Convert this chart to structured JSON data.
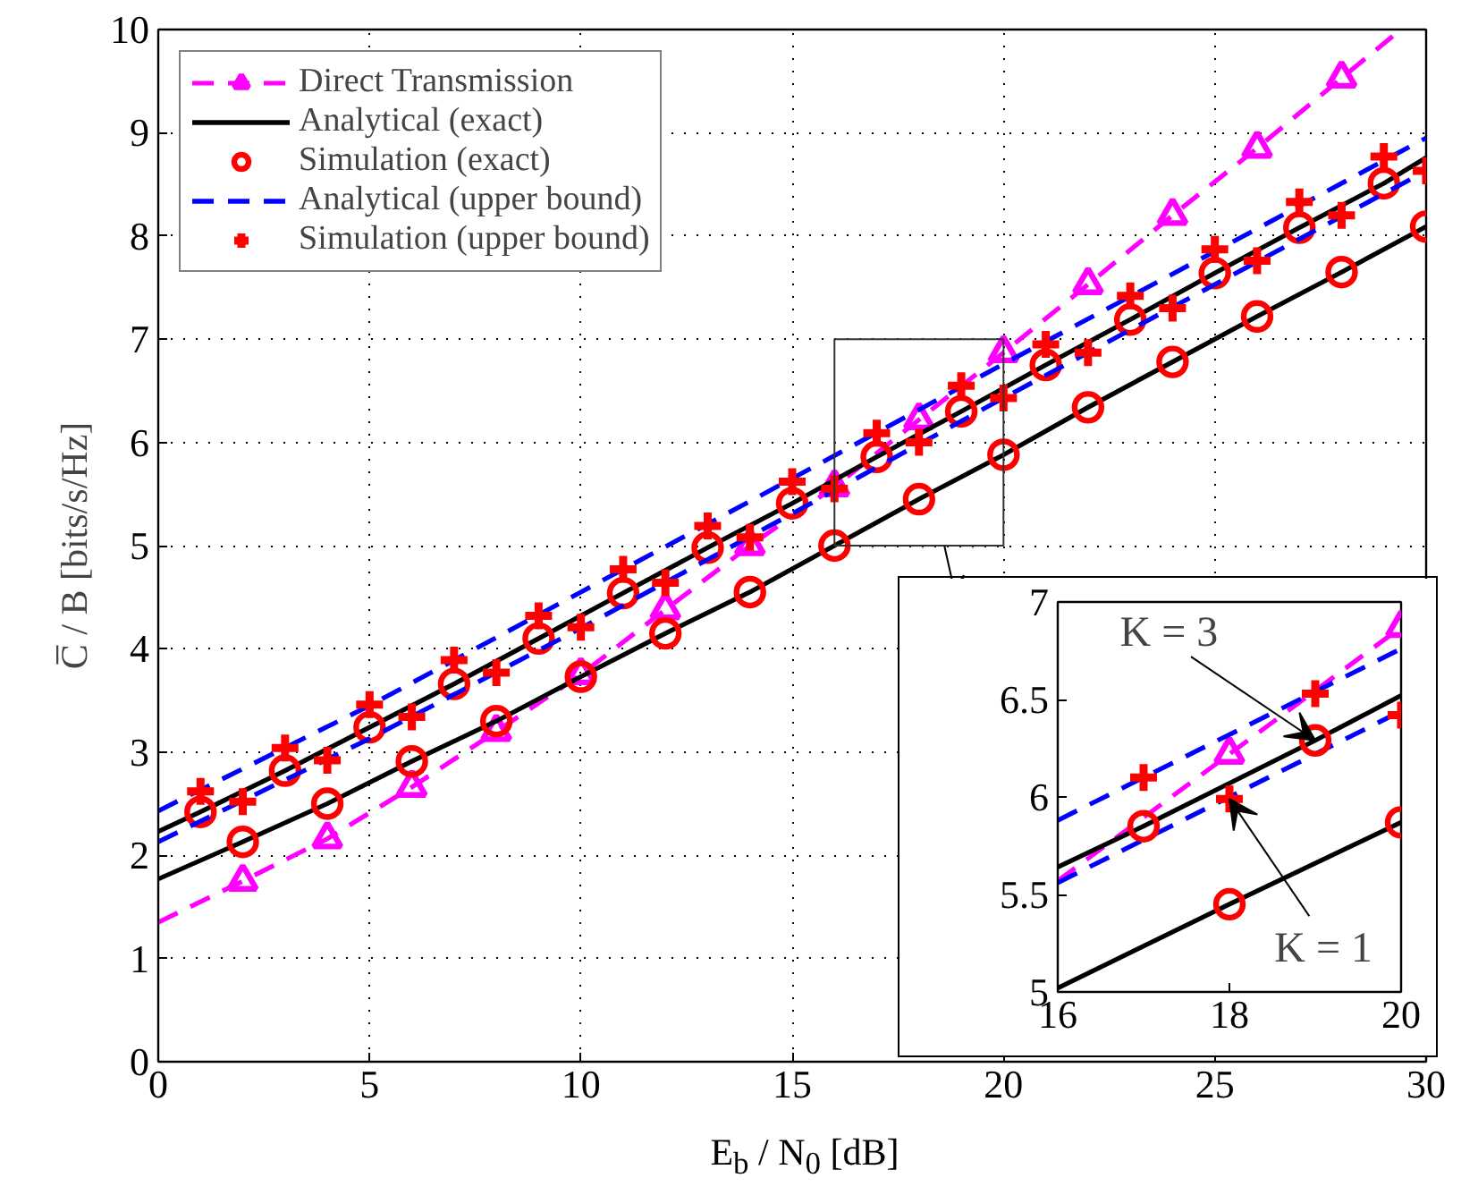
{
  "chart_data": [
    {
      "type": "line",
      "xlabel": "E$_{b}$ / N$_{0}$ [dB]",
      "ylabel": "C̅ / B [bits/s/Hz]",
      "xlim": [
        0,
        30
      ],
      "ylim": [
        0,
        10
      ],
      "xticks": [
        0,
        5,
        10,
        15,
        20,
        25,
        30
      ],
      "yticks": [
        0,
        1,
        2,
        3,
        4,
        5,
        6,
        7,
        8,
        9,
        10
      ],
      "grid": true,
      "legend": "top left",
      "series": [
        {
          "name": "Direct Transmission",
          "color": "#ff00ff",
          "line_style": "dashed",
          "marker": "none",
          "x": [
            0,
            2,
            4,
            6,
            8,
            10,
            12,
            14,
            16,
            18,
            20,
            22,
            24,
            26,
            28,
            29.4
          ],
          "values": [
            1.35,
            1.75,
            2.16,
            2.66,
            3.2,
            3.75,
            4.38,
            5.0,
            5.57,
            6.22,
            6.87,
            7.53,
            8.2,
            8.85,
            9.53,
            10.0
          ]
        },
        {
          "type": "scatter",
          "color": "#ff00ff",
          "marker": "triangle",
          "x": [
            2,
            4,
            6,
            8,
            10,
            12,
            14,
            16,
            18,
            20,
            22,
            24,
            26,
            28
          ],
          "values": [
            1.75,
            2.16,
            2.66,
            3.2,
            3.75,
            4.38,
            5.0,
            5.57,
            6.22,
            6.87,
            7.53,
            8.2,
            8.85,
            9.53
          ]
        },
        {
          "name": "Analytical (exact)",
          "color": "#000000",
          "line_style": "solid",
          "marker": "none",
          "x": [
            0,
            1,
            3,
            5,
            7,
            9,
            11,
            13,
            15,
            17,
            19,
            21,
            23,
            25,
            27,
            29,
            30
          ],
          "values": [
            2.23,
            2.42,
            2.82,
            3.24,
            3.66,
            4.1,
            4.54,
            4.98,
            5.41,
            5.86,
            6.3,
            6.75,
            7.19,
            7.64,
            8.08,
            8.51,
            8.76
          ]
        },
        {
          "color": "#000000",
          "line_style": "solid",
          "marker": "none",
          "x": [
            0,
            2,
            4,
            6,
            8,
            10,
            12,
            14,
            16,
            18,
            20,
            22,
            24,
            26,
            28,
            30
          ],
          "values": [
            1.77,
            2.13,
            2.5,
            2.91,
            3.3,
            3.73,
            4.15,
            4.55,
            5.0,
            5.45,
            5.88,
            6.34,
            6.78,
            7.22,
            7.65,
            8.09
          ]
        },
        {
          "type": "scatter",
          "name": "Simulation (exact)",
          "color": "#ff0000",
          "marker": "circle",
          "x": [
            1,
            2,
            3,
            4,
            5,
            6,
            7,
            8,
            9,
            10,
            11,
            12,
            13,
            14,
            15,
            16,
            17,
            18,
            19,
            20,
            21,
            22,
            23,
            24,
            25,
            26,
            27,
            28,
            29,
            30
          ],
          "values": [
            2.42,
            2.13,
            2.82,
            2.5,
            3.24,
            2.91,
            3.66,
            3.3,
            4.1,
            3.73,
            4.54,
            4.15,
            4.98,
            4.55,
            5.41,
            5.0,
            5.86,
            5.45,
            6.3,
            5.88,
            6.75,
            6.34,
            7.19,
            6.78,
            7.64,
            7.22,
            8.08,
            7.65,
            8.51,
            8.09
          ]
        },
        {
          "name": "Analytical (upper bound)",
          "color": "#0000ff",
          "line_style": "dashed",
          "marker": "none",
          "x": [
            0,
            5,
            10,
            15,
            20,
            25,
            30
          ],
          "values": [
            2.43,
            3.45,
            4.55,
            5.65,
            6.76,
            7.85,
            8.95
          ]
        },
        {
          "color": "#0000ff",
          "line_style": "dashed",
          "marker": "none",
          "x": [
            0,
            5,
            10,
            15,
            20,
            25,
            30
          ],
          "values": [
            2.13,
            3.13,
            4.2,
            5.31,
            6.43,
            7.53,
            8.63
          ]
        },
        {
          "type": "scatter",
          "name": "Simulation (upper bound)",
          "color": "#ff0000",
          "marker": "cross",
          "x": [
            1,
            2,
            3,
            4,
            5,
            6,
            7,
            8,
            9,
            10,
            11,
            12,
            13,
            14,
            15,
            16,
            17,
            18,
            19,
            20,
            21,
            22,
            23,
            24,
            25,
            26,
            27,
            28,
            29,
            30
          ],
          "values": [
            2.62,
            2.52,
            3.04,
            2.92,
            3.46,
            3.34,
            3.89,
            3.77,
            4.32,
            4.21,
            4.77,
            4.64,
            5.19,
            5.08,
            5.62,
            5.55,
            6.09,
            6.0,
            6.55,
            6.43,
            6.95,
            6.87,
            7.42,
            7.3,
            7.87,
            7.76,
            8.33,
            8.2,
            8.77,
            8.63
          ]
        }
      ]
    },
    {
      "type": "line",
      "xlim": [
        16,
        20
      ],
      "ylim": [
        5,
        7
      ],
      "xticks": [
        16,
        18,
        20
      ],
      "yticks": [
        5,
        5.5,
        6,
        6.5,
        7
      ],
      "grid": false,
      "annotations": [
        {
          "text": "K = 3",
          "x": 19,
          "y": 6.29
        },
        {
          "text": "K = 1",
          "x": 18,
          "y": 5.99
        }
      ],
      "series": [
        {
          "color": "#ff00ff",
          "line_style": "dashed",
          "marker": "none",
          "x": [
            16,
            18,
            20
          ],
          "values": [
            5.57,
            6.22,
            6.87
          ]
        },
        {
          "type": "scatter",
          "color": "#ff00ff",
          "marker": "triangle",
          "x": [
            18,
            20
          ],
          "values": [
            6.22,
            6.87
          ]
        },
        {
          "color": "#0000ff",
          "line_style": "dashed",
          "marker": "none",
          "x": [
            16,
            20
          ],
          "values": [
            5.88,
            6.76
          ]
        },
        {
          "color": "#0000ff",
          "line_style": "dashed",
          "marker": "none",
          "x": [
            16,
            20
          ],
          "values": [
            5.56,
            6.44
          ]
        },
        {
          "color": "#000000",
          "line_style": "solid",
          "marker": "none",
          "x": [
            16,
            17,
            19,
            20
          ],
          "values": [
            5.64,
            5.85,
            6.29,
            6.52
          ]
        },
        {
          "color": "#000000",
          "line_style": "solid",
          "marker": "none",
          "x": [
            16,
            18,
            20
          ],
          "values": [
            5.02,
            5.45,
            5.87
          ]
        },
        {
          "type": "scatter",
          "color": "#ff0000",
          "marker": "circle",
          "x": [
            17,
            18,
            19,
            20
          ],
          "values": [
            5.85,
            5.45,
            6.29,
            5.87
          ]
        },
        {
          "type": "scatter",
          "color": "#ff0000",
          "marker": "cross",
          "x": [
            17,
            18,
            19,
            20
          ],
          "values": [
            6.1,
            5.99,
            6.53,
            6.42
          ]
        }
      ]
    }
  ]
}
